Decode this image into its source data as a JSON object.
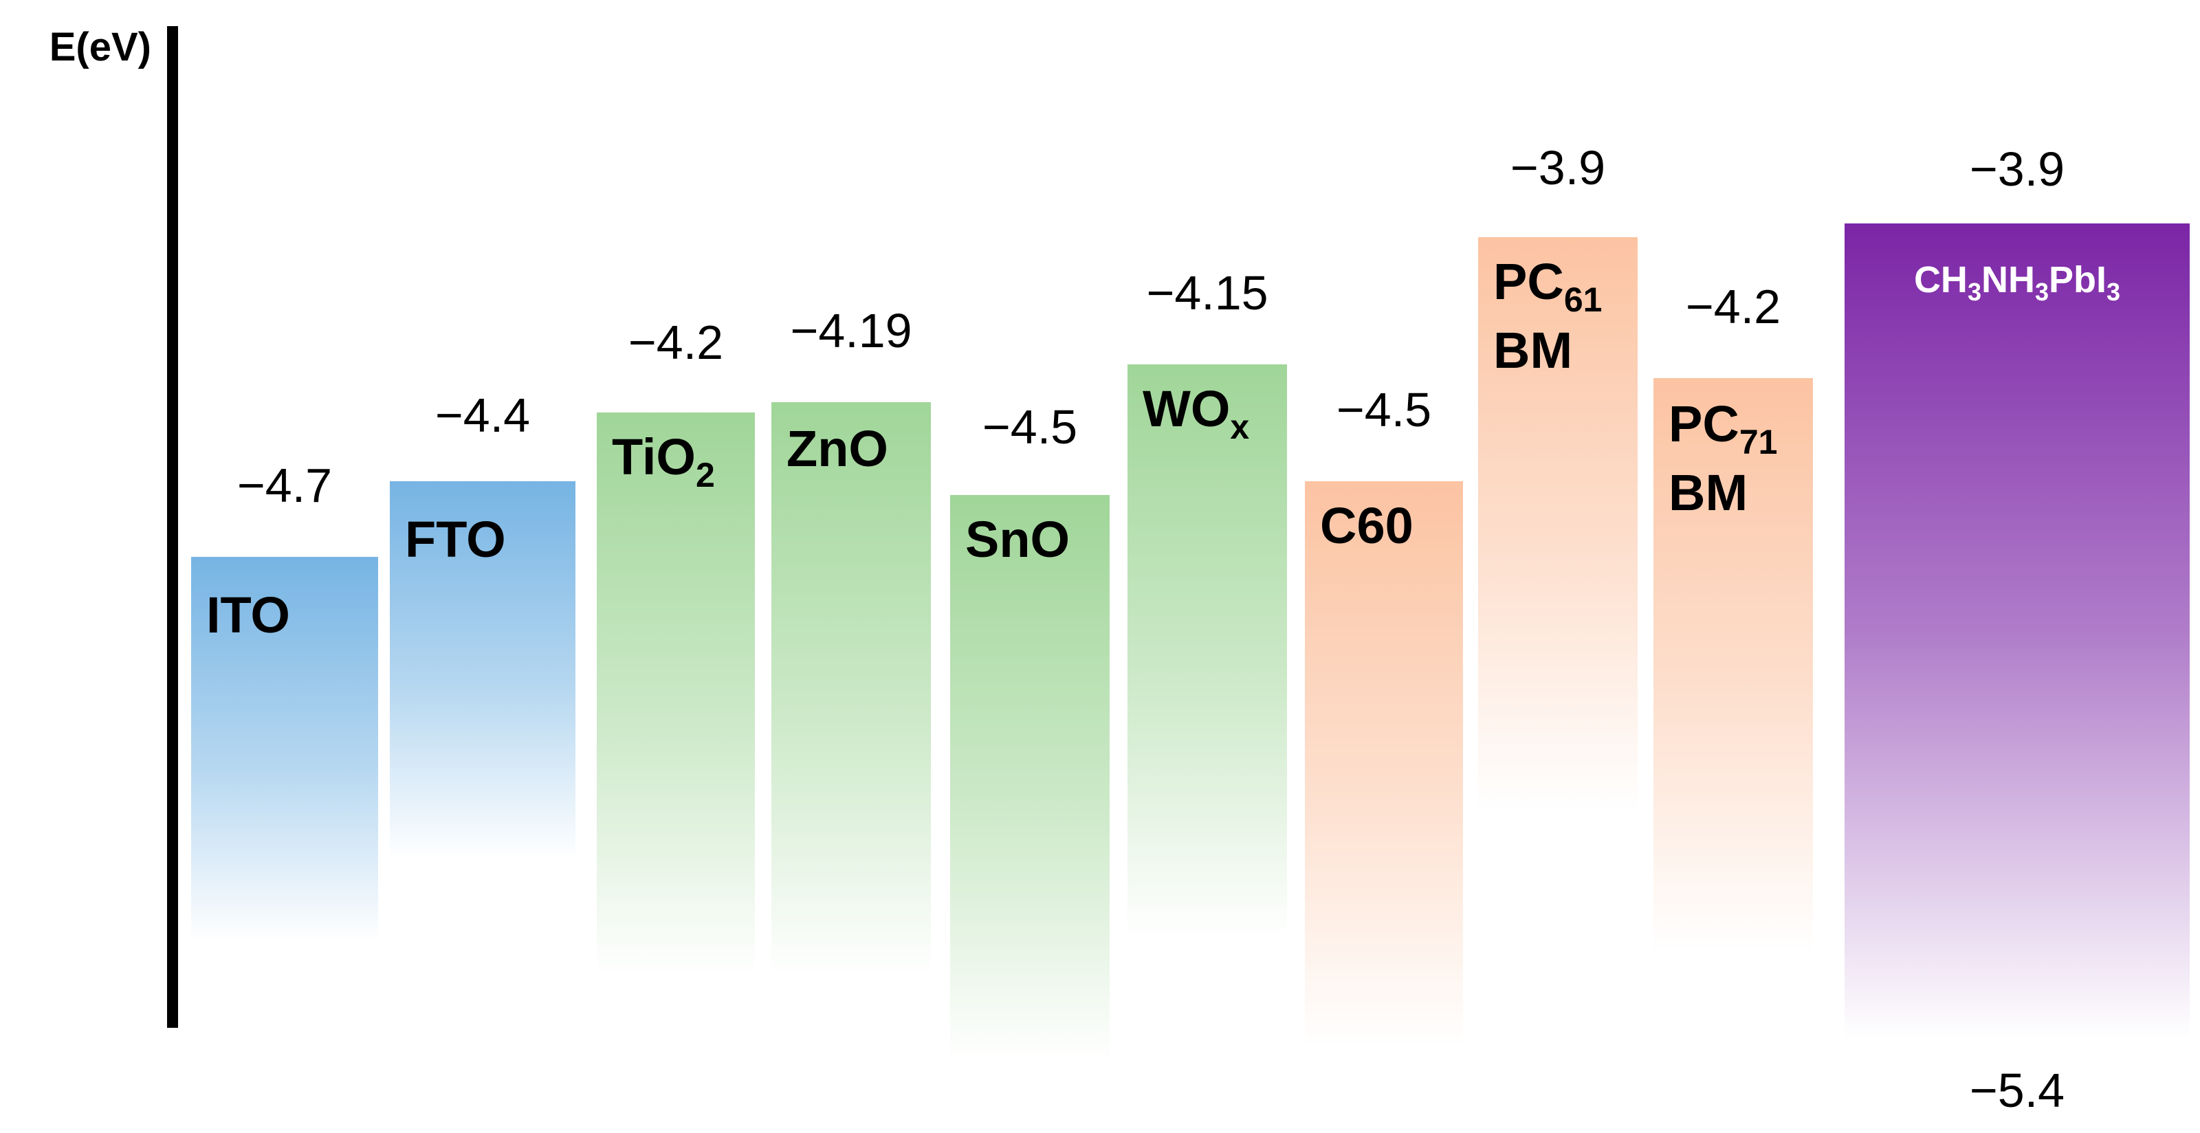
{
  "axis": {
    "label": "E(eV)"
  },
  "colors": {
    "blue": "#5ea7df",
    "green": "#8fce86",
    "orange": "#fbb992",
    "purple": "#7b25a6",
    "axis": "#000000",
    "text": "#000000",
    "onPurple": "#ffffff"
  },
  "materials": [
    {
      "id": "ito",
      "name": "ITO",
      "sub": "",
      "line2": "",
      "value": "−4.7",
      "color": "blue"
    },
    {
      "id": "fto",
      "name": "FTO",
      "sub": "",
      "line2": "",
      "value": "−4.4",
      "color": "blue"
    },
    {
      "id": "tio2",
      "name": "TiO",
      "sub": "2",
      "line2": "",
      "value": "−4.2",
      "color": "green"
    },
    {
      "id": "zno",
      "name": "ZnO",
      "sub": "",
      "line2": "",
      "value": "−4.19",
      "color": "green"
    },
    {
      "id": "sno",
      "name": "SnO",
      "sub": "",
      "line2": "",
      "value": "−4.5",
      "color": "green"
    },
    {
      "id": "wox",
      "name": "WO",
      "sub": "x",
      "line2": "",
      "value": "−4.15",
      "color": "green"
    },
    {
      "id": "c60",
      "name": "C60",
      "sub": "",
      "line2": "",
      "value": "−4.5",
      "color": "orange"
    },
    {
      "id": "pc61bm",
      "name": "PC",
      "sub": "61",
      "line2": "BM",
      "value": "−3.9",
      "color": "orange"
    },
    {
      "id": "pc71bm",
      "name": "PC",
      "sub": "71",
      "line2": "BM",
      "value": "−4.2",
      "color": "orange"
    }
  ],
  "perovskite": {
    "parts": [
      "CH",
      "3",
      "NH",
      "3",
      "PbI",
      "3"
    ],
    "top_value": "−3.9",
    "bottom_value": "−5.4",
    "color": "purple"
  }
}
